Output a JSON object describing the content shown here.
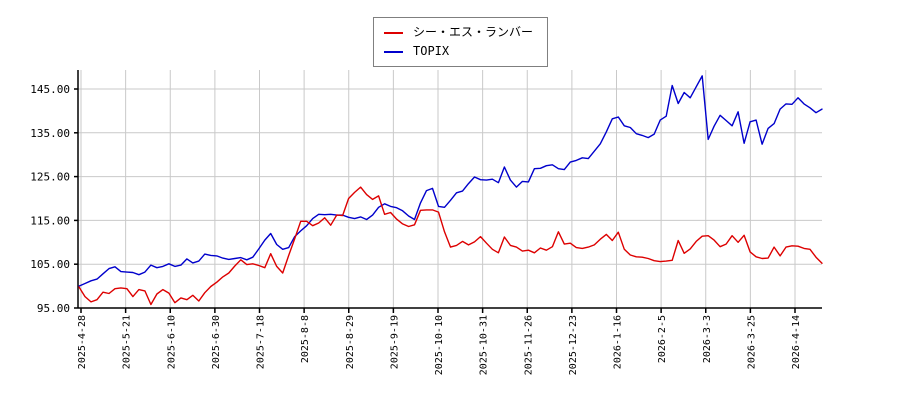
{
  "chart_data": {
    "type": "line",
    "title": "",
    "xlabel": "",
    "ylabel": "",
    "grid": true,
    "legend_position": "top-center",
    "ylim": [
      95,
      149.3
    ],
    "y_ticks": [
      {
        "value": 145,
        "label": "145.00"
      },
      {
        "value": 135,
        "label": "135.00"
      },
      {
        "value": 125,
        "label": "125.00"
      },
      {
        "value": 115,
        "label": "115.00"
      },
      {
        "value": 105,
        "label": "105.00"
      },
      {
        "value": 95,
        "label": "95.00"
      }
    ],
    "x_tick_labels": [
      "2025-4-28",
      "2025-5-21",
      "2025-6-10",
      "2025-6-30",
      "2025-7-18",
      "2025-8-8",
      "2025-8-29",
      "2025-9-19",
      "2025-10-10",
      "2025-10-31",
      "2025-11-26",
      "2025-12-23",
      "2026-1-16",
      "2026-2-5",
      "2026-3-3",
      "2026-3-25",
      "2026-4-14"
    ],
    "series": [
      {
        "name": "シー・エス・ランバー",
        "color": "#dd0000",
        "values": [
          99.8,
          97.6,
          96.4,
          96.9,
          98.6,
          98.3,
          99.4,
          99.6,
          99.4,
          97.6,
          99.2,
          98.9,
          95.8,
          98.2,
          99.2,
          98.4,
          96.2,
          97.3,
          96.9,
          97.9,
          96.6,
          98.5,
          99.9,
          100.9,
          102.1,
          103.0,
          104.6,
          106.0,
          104.9,
          105.1,
          104.7,
          104.2,
          107.4,
          104.5,
          103.0,
          107.0,
          110.8,
          114.8,
          114.8,
          113.8,
          114.4,
          115.6,
          113.9,
          116.2,
          116.1,
          120.0,
          121.4,
          122.6,
          120.9,
          119.8,
          120.6,
          116.4,
          116.8,
          115.3,
          114.2,
          113.6,
          114.0,
          117.3,
          117.4,
          117.4,
          116.9,
          112.4,
          108.9,
          109.3,
          110.2,
          109.4,
          110.1,
          111.3,
          109.8,
          108.4,
          107.6,
          111.2,
          109.3,
          108.9,
          108.0,
          108.2,
          107.6,
          108.7,
          108.2,
          109.0,
          112.4,
          109.6,
          109.8,
          108.8,
          108.6,
          108.9,
          109.4,
          110.7,
          111.8,
          110.4,
          112.3,
          108.4,
          107.1,
          106.7,
          106.6,
          106.3,
          105.8,
          105.6,
          105.7,
          105.9,
          110.4,
          107.5,
          108.5,
          110.2,
          111.4,
          111.5,
          110.5,
          109.0,
          109.6,
          111.5,
          110.0,
          111.6,
          107.8,
          106.7,
          106.3,
          106.4,
          108.9,
          106.9,
          108.9,
          109.2,
          109.1,
          108.6,
          108.4,
          106.6,
          105.2
        ]
      },
      {
        "name": "TOPIX",
        "color": "#0000cc",
        "values": [
          100.0,
          100.6,
          101.2,
          101.6,
          102.8,
          104.0,
          104.4,
          103.3,
          103.2,
          103.1,
          102.6,
          103.2,
          104.8,
          104.2,
          104.5,
          105.1,
          104.5,
          104.8,
          106.2,
          105.3,
          105.7,
          107.3,
          107.0,
          106.9,
          106.4,
          106.1,
          106.3,
          106.5,
          106.0,
          106.6,
          108.5,
          110.5,
          112.0,
          109.5,
          108.4,
          108.8,
          111.3,
          112.6,
          113.8,
          115.4,
          116.4,
          116.3,
          116.4,
          116.2,
          116.2,
          115.7,
          115.4,
          115.8,
          115.2,
          116.2,
          118.0,
          118.8,
          118.2,
          117.9,
          117.2,
          116.0,
          115.2,
          119.0,
          121.8,
          122.3,
          118.2,
          118.0,
          119.6,
          121.3,
          121.7,
          123.4,
          124.9,
          124.3,
          124.2,
          124.4,
          123.6,
          127.2,
          124.2,
          122.6,
          123.9,
          123.8,
          126.8,
          126.9,
          127.5,
          127.7,
          126.8,
          126.6,
          128.3,
          128.7,
          129.3,
          129.1,
          130.8,
          132.5,
          135.2,
          138.2,
          138.6,
          136.6,
          136.2,
          134.8,
          134.4,
          133.9,
          134.7,
          137.9,
          138.8,
          145.8,
          141.7,
          144.2,
          143.0,
          145.5,
          148.0,
          133.5,
          136.5,
          139.0,
          137.8,
          136.6,
          139.8,
          132.6,
          137.5,
          137.9,
          132.4,
          136.0,
          137.1,
          140.4,
          141.6,
          141.5,
          143.0,
          141.6,
          140.7,
          139.6,
          140.4
        ]
      }
    ]
  }
}
